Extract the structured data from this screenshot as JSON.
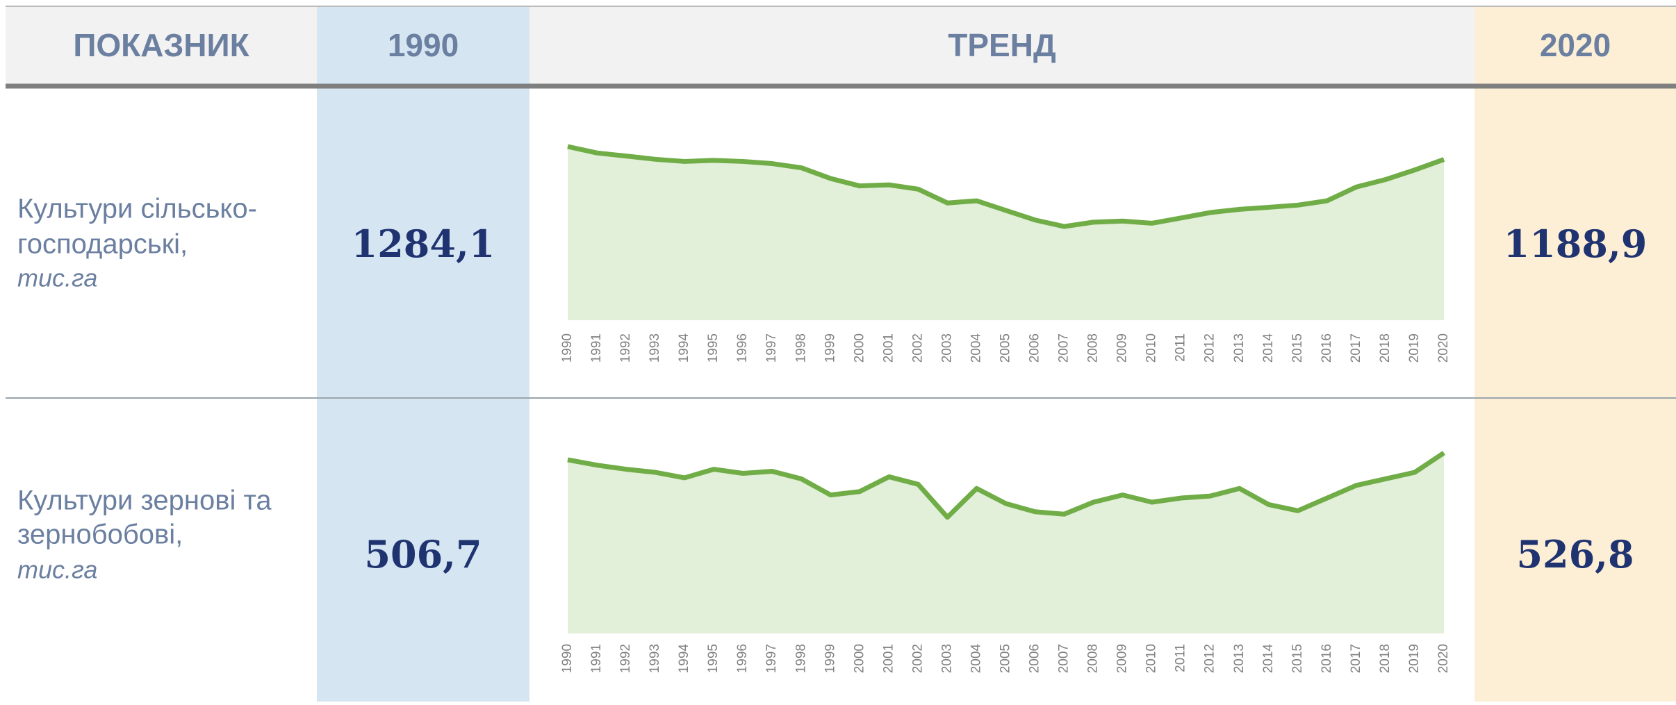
{
  "table": {
    "header": [
      "ПОКАЗНИК",
      "1990",
      "ТРЕНД",
      "2020"
    ],
    "rows": [
      {
        "label": [
          "Культури сільсько-",
          "господарські,"
        ],
        "unit": "тис.га",
        "start": "1284,1",
        "end": "1188,9"
      },
      {
        "label": [
          "Культури зернові та",
          "зернобобові,"
        ],
        "unit": "тис.га",
        "start": "506,7",
        "end": "526,8"
      }
    ]
  },
  "chart_data": [
    {
      "type": "area",
      "color": "#70ad47",
      "fill": "#e2efd9",
      "x": [
        1990,
        1991,
        1992,
        1993,
        1994,
        1995,
        1996,
        1997,
        1998,
        1999,
        2000,
        2001,
        2002,
        2003,
        2004,
        2005,
        2006,
        2007,
        2008,
        2009,
        2010,
        2011,
        2012,
        2013,
        2014,
        2015,
        2016,
        2017,
        2018,
        2019,
        2020
      ],
      "values": [
        1284.1,
        1237,
        1214,
        1190,
        1174,
        1182,
        1174,
        1158,
        1127,
        1048,
        993,
        1001,
        969,
        867,
        883,
        812,
        741,
        693,
        725,
        733,
        717,
        756,
        796,
        820,
        835,
        851,
        883,
        985,
        1040,
        1111,
        1188.9
      ]
    },
    {
      "type": "area",
      "color": "#70ad47",
      "fill": "#e2efd9",
      "x": [
        1990,
        1991,
        1992,
        1993,
        1994,
        1995,
        1996,
        1997,
        1998,
        1999,
        2000,
        2001,
        2002,
        2003,
        2004,
        2005,
        2006,
        2007,
        2008,
        2009,
        2010,
        2011,
        2012,
        2013,
        2014,
        2015,
        2016,
        2017,
        2018,
        2019,
        2020
      ],
      "values": [
        506.7,
        491,
        479,
        470,
        454,
        479,
        467,
        473,
        451,
        404,
        414,
        457,
        435,
        339,
        423,
        379,
        355,
        348,
        383,
        404,
        383,
        395,
        401,
        423,
        376,
        358,
        395,
        432,
        451,
        470,
        526.8
      ]
    }
  ]
}
